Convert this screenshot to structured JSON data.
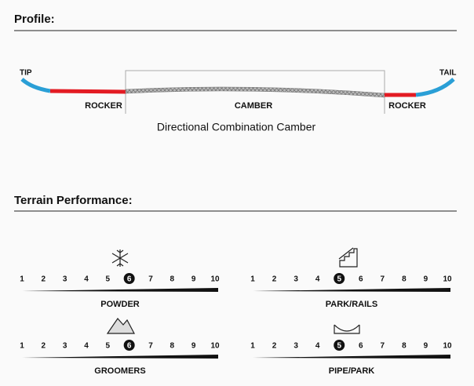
{
  "profile": {
    "title": "Profile:",
    "tip": "TIP",
    "tail": "TAIL",
    "zones": [
      "ROCKER",
      "CAMBER",
      "ROCKER"
    ],
    "name": "Directional Combination Camber"
  },
  "terrain": {
    "title": "Terrain Performance:",
    "scale": [
      1,
      2,
      3,
      4,
      5,
      6,
      7,
      8,
      9,
      10
    ],
    "items": [
      {
        "label": "POWDER",
        "rating": 6
      },
      {
        "label": "PARK/RAILS",
        "rating": 5
      },
      {
        "label": "GROOMERS",
        "rating": 6
      },
      {
        "label": "PIPE/PARK",
        "rating": 5
      }
    ]
  }
}
